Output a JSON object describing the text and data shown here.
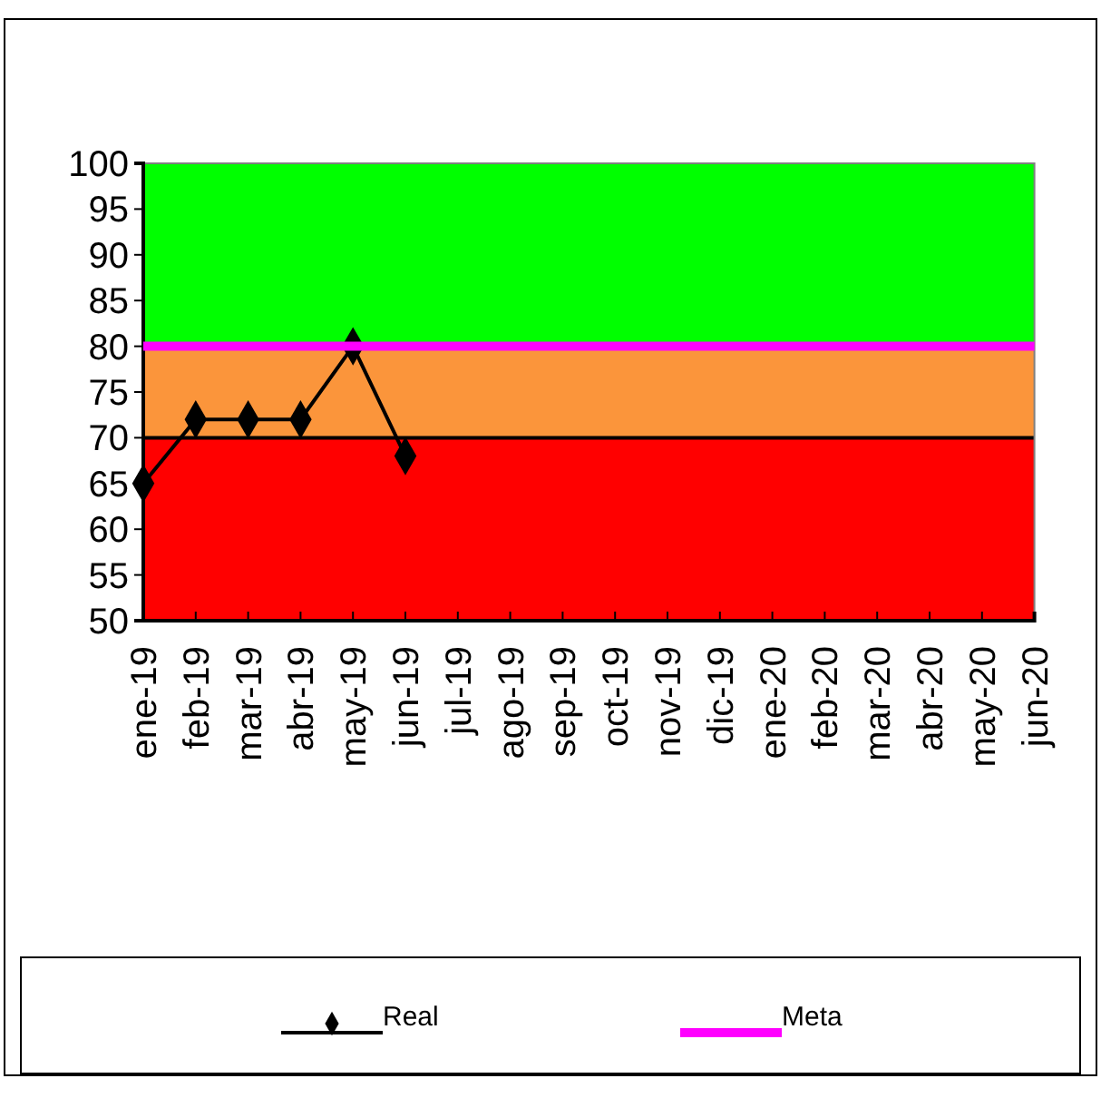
{
  "chart_data": {
    "type": "line",
    "categories": [
      "ene-19",
      "feb-19",
      "mar-19",
      "abr-19",
      "may-19",
      "jun-19",
      "jul-19",
      "ago-19",
      "sep-19",
      "oct-19",
      "nov-19",
      "dic-19",
      "ene-20",
      "feb-20",
      "mar-20",
      "abr-20",
      "may-20",
      "jun-20"
    ],
    "series": [
      {
        "name": "Real",
        "color": "#000000",
        "marker": "diamond",
        "values": [
          65,
          72,
          72,
          72,
          80,
          68,
          null,
          null,
          null,
          null,
          null,
          null,
          null,
          null,
          null,
          null,
          null,
          null
        ]
      },
      {
        "name": "Meta",
        "color": "#ff00ff",
        "marker": "none",
        "values": [
          80,
          80,
          80,
          80,
          80,
          80,
          80,
          80,
          80,
          80,
          80,
          80,
          80,
          80,
          80,
          80,
          80,
          80
        ]
      }
    ],
    "ylim": [
      50,
      100
    ],
    "yticks": [
      50,
      55,
      60,
      65,
      70,
      75,
      80,
      85,
      90,
      95,
      100
    ],
    "bands": [
      {
        "axis": "y",
        "from": 50,
        "to": 70,
        "color": "#ff0000"
      },
      {
        "axis": "y",
        "from": 70,
        "to": 80,
        "color": "#fb953b"
      },
      {
        "axis": "y",
        "from": 80,
        "to": 100,
        "color": "#00ff00"
      }
    ],
    "ref_lines": [
      {
        "axis": "y",
        "value": 70,
        "color": "#000000"
      }
    ],
    "legend": "bottom",
    "grid": false
  }
}
